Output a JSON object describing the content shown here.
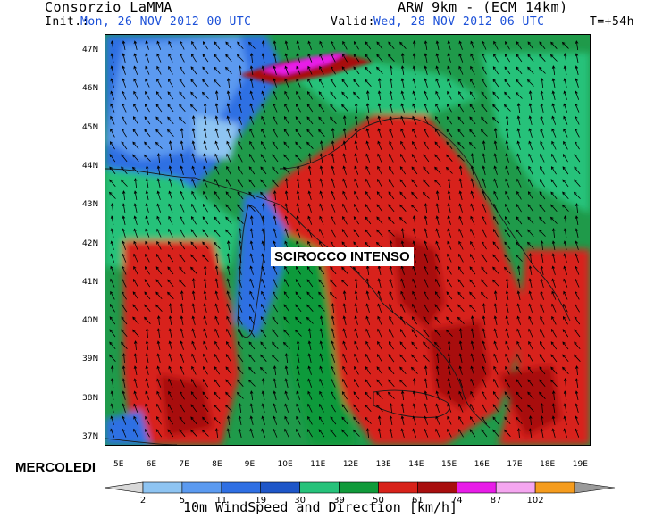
{
  "header": {
    "org": "Consorzio LaMMA",
    "model": "ARW 9km - (ECM 14km)",
    "init_label": "Init.:",
    "init_value": "Mon, 26 NOV 2012  00 UTC",
    "valid_label": "Valid:",
    "valid_value": "Wed, 28 NOV 2012  06 UTC",
    "forecast_step": "T=+54h"
  },
  "map": {
    "lat_labels": [
      "47N",
      "46N",
      "45N",
      "44N",
      "43N",
      "42N",
      "41N",
      "40N",
      "39N",
      "38N",
      "37N"
    ],
    "lon_labels": [
      "5E",
      "6E",
      "7E",
      "8E",
      "9E",
      "10E",
      "11E",
      "12E",
      "13E",
      "14E",
      "15E",
      "16E",
      "17E",
      "18E",
      "19E"
    ],
    "annotation": "SCIROCCO INTENSO",
    "weekday": "MERCOLEDI"
  },
  "colorbar": {
    "title": "10m WindSpeed and Direction [km/h]",
    "ticks": [
      "2",
      "5",
      "11",
      "19",
      "30",
      "39",
      "50",
      "61",
      "74",
      "87",
      "102"
    ],
    "colors": [
      "#8ec4f2",
      "#5b9af0",
      "#2f6fe3",
      "#1e56c8",
      "#26c27a",
      "#109a3a",
      "#d8221a",
      "#a80e0e",
      "#e81ce8",
      "#f5a6f0",
      "#f59c1e"
    ],
    "under_color": "#d8d8d8",
    "over_color": "#9a9a9a"
  }
}
